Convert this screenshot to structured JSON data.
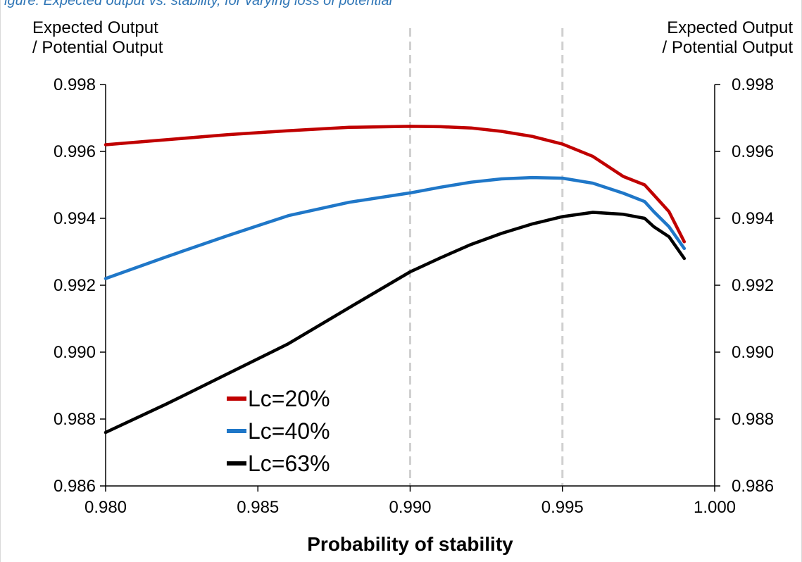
{
  "caption_fragment": "igure: Expected output vs. stability, for varying loss of potential",
  "chart_data": {
    "type": "line",
    "left_axis_title": [
      "Expected Output",
      "/ Potential Output"
    ],
    "right_axis_title": [
      "Expected Output",
      "/ Potential Output"
    ],
    "xlabel": "Probability of stability",
    "xlim": [
      0.98,
      1.0
    ],
    "ylim": [
      0.986,
      0.998
    ],
    "x_ticks": [
      "0.980",
      "0.985",
      "0.990",
      "0.995",
      "1.000"
    ],
    "y_ticks": [
      "0.986",
      "0.988",
      "0.990",
      "0.992",
      "0.994",
      "0.996",
      "0.998"
    ],
    "vertical_reference_lines": [
      0.99,
      0.995
    ],
    "grid": false,
    "legend_placement": "bottom-left",
    "series": [
      {
        "name": "Lc=20%",
        "color": "#c00000",
        "x": [
          0.98,
          0.982,
          0.984,
          0.986,
          0.988,
          0.99,
          0.991,
          0.992,
          0.993,
          0.994,
          0.995,
          0.996,
          0.997,
          0.9977,
          0.998,
          0.9985,
          0.999
        ],
        "y": [
          0.9962,
          0.99635,
          0.9965,
          0.99662,
          0.99672,
          0.99675,
          0.99674,
          0.9967,
          0.9966,
          0.99645,
          0.99622,
          0.99585,
          0.99525,
          0.995,
          0.9947,
          0.9942,
          0.9933
        ]
      },
      {
        "name": "Lc=40%",
        "color": "#1f77c8",
        "x": [
          0.98,
          0.982,
          0.984,
          0.986,
          0.988,
          0.99,
          0.991,
          0.992,
          0.993,
          0.994,
          0.995,
          0.996,
          0.997,
          0.9977,
          0.998,
          0.9985,
          0.999
        ],
        "y": [
          0.9922,
          0.99285,
          0.99348,
          0.99408,
          0.99448,
          0.99476,
          0.99493,
          0.99508,
          0.99518,
          0.99522,
          0.9952,
          0.99505,
          0.99475,
          0.9945,
          0.9942,
          0.99375,
          0.9931
        ]
      },
      {
        "name": "Lc=63%",
        "color": "#000000",
        "x": [
          0.98,
          0.982,
          0.984,
          0.986,
          0.988,
          0.99,
          0.991,
          0.992,
          0.993,
          0.994,
          0.995,
          0.996,
          0.997,
          0.9977,
          0.998,
          0.9985,
          0.999
        ],
        "y": [
          0.9876,
          0.98845,
          0.98935,
          0.99025,
          0.99133,
          0.9924,
          0.99282,
          0.99322,
          0.99355,
          0.99383,
          0.99405,
          0.99418,
          0.99412,
          0.994,
          0.99375,
          0.99345,
          0.9928
        ]
      }
    ]
  }
}
